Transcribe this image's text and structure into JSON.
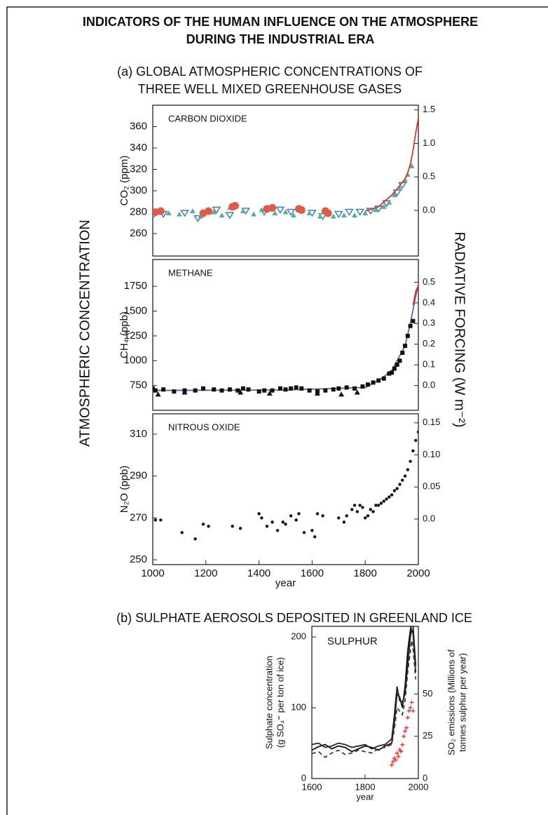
{
  "title": [
    "INDICATORS OF THE HUMAN INFLUENCE ON THE ATMOSPHERE",
    "DURING THE INDUSTRIAL ERA"
  ],
  "section_a": [
    "(a) GLOBAL ATMOSPHERIC CONCENTRATIONS OF",
    "THREE WELL MIXED GREENHOUSE GASES"
  ],
  "section_b": "(b)  SULPHATE AEROSOLS DEPOSITED IN GREENLAND ICE",
  "y_label_left": "ATMOSPHERIC CONCENTRATION",
  "y_label_right": "RADIATIVE FORCING (W m⁻²)",
  "chart_data": [
    {
      "type": "scatter",
      "panel_label": "CARBON DIOXIDE",
      "y_label": "CO₂ (ppm)",
      "xlim": [
        1000,
        2000
      ],
      "ylim": [
        239,
        380
      ],
      "yticks": [
        260,
        280,
        300,
        320,
        340,
        360
      ],
      "y2lim": [
        -0.68,
        1.57
      ],
      "y2ticks": [
        {
          "value": 0,
          "label": "0.0"
        },
        0.5,
        {
          "value": 1,
          "label": "1.0"
        },
        1.5
      ],
      "series": [
        {
          "color": "#3d7fb0",
          "marker": "triangle-down",
          "x": [
            1040,
            1120,
            1170,
            1240,
            1290,
            1350,
            1420,
            1480,
            1520,
            1600,
            1640,
            1700,
            1740,
            1780,
            1820,
            1850,
            1880,
            1920,
            1940
          ],
          "values": [
            278,
            279,
            274,
            282,
            277,
            281,
            280,
            282,
            280,
            279,
            276,
            278,
            280,
            280,
            281,
            283,
            288,
            298,
            305
          ]
        },
        {
          "color": "#5bab9a",
          "marker": "triangle",
          "x": [
            1000,
            1060,
            1100,
            1150,
            1180,
            1230,
            1260,
            1290,
            1340,
            1380,
            1410,
            1460,
            1500,
            1530,
            1590,
            1630,
            1680,
            1720,
            1760,
            1800,
            1840,
            1870,
            1890,
            1910,
            1930,
            1950,
            1960,
            1975
          ],
          "values": [
            277,
            279,
            278,
            281,
            276,
            280,
            277,
            284,
            281,
            278,
            282,
            279,
            280,
            277,
            279,
            276,
            276,
            277,
            277,
            279,
            282,
            285,
            289,
            296,
            302,
            310,
            315,
            323
          ]
        },
        {
          "color": "#e05a4a",
          "marker": "circle",
          "x": [
            1010,
            1030,
            1190,
            1210,
            1300,
            1310,
            1430,
            1450,
            1550,
            1560,
            1650,
            1660
          ],
          "values": [
            280,
            281,
            279,
            281,
            285,
            286,
            283,
            284,
            283,
            282,
            281,
            279
          ]
        },
        {
          "color": "#d8392b",
          "marker": "line",
          "x": [
            1800,
            1850,
            1900,
            1930,
            1950,
            1960,
            1970,
            1980,
            1990,
            2000
          ],
          "values": [
            281,
            285,
            296,
            305,
            311,
            317,
            325,
            338,
            354,
            368
          ]
        }
      ]
    },
    {
      "type": "scatter",
      "panel_label": "METHANE",
      "y_label": "CH₄ (ppb)",
      "xlim": [
        1000,
        2000
      ],
      "ylim": [
        500,
        2020
      ],
      "yticks": [
        750,
        1000,
        1250,
        1500,
        1750
      ],
      "y2lim": [
        -0.12,
        0.61
      ],
      "y2ticks": [
        {
          "value": 0,
          "label": "0.0"
        },
        0.1,
        0.2,
        0.3,
        0.4,
        0.5
      ],
      "series": [
        {
          "color": "#6b5ea8",
          "marker": "line",
          "x": [
            1000,
            1500,
            1800,
            1850,
            1900,
            1950,
            1970,
            1990,
            2000
          ],
          "values": [
            700,
            705,
            730,
            800,
            900,
            1150,
            1380,
            1650,
            1760
          ]
        },
        {
          "color": "#111111",
          "marker": "square",
          "x": [
            1000,
            1010,
            1040,
            1080,
            1120,
            1160,
            1190,
            1230,
            1260,
            1290,
            1320,
            1340,
            1360,
            1400,
            1420,
            1450,
            1480,
            1500,
            1520,
            1540,
            1560,
            1590,
            1620,
            1650,
            1680,
            1700,
            1730,
            1760,
            1790,
            1810,
            1830,
            1850,
            1870,
            1890,
            1900,
            1910,
            1920,
            1930,
            1940,
            1950,
            1960,
            1970,
            1980
          ],
          "values": [
            720,
            700,
            710,
            690,
            700,
            700,
            720,
            710,
            700,
            710,
            700,
            720,
            710,
            690,
            700,
            700,
            720,
            710,
            720,
            730,
            720,
            700,
            690,
            700,
            710,
            720,
            730,
            720,
            740,
            760,
            780,
            800,
            820,
            870,
            880,
            920,
            960,
            1000,
            1080,
            1150,
            1250,
            1350,
            1400
          ]
        },
        {
          "color": "#111111",
          "marker": "triangle",
          "x": [
            1020,
            1120,
            1330,
            1440,
            1620,
            1710,
            1770
          ],
          "values": [
            660,
            680,
            680,
            670,
            670,
            660,
            680
          ]
        },
        {
          "color": "#d8392b",
          "marker": "line",
          "x": [
            1980,
            1990,
            2000
          ],
          "values": [
            1560,
            1700,
            1760
          ]
        }
      ]
    },
    {
      "type": "scatter",
      "panel_label": "NITROUS OXIDE",
      "y_label": "N₂O (ppb)",
      "x_label": "year",
      "xlim": [
        1000,
        2000
      ],
      "xticks": [
        1000,
        1200,
        1400,
        1600,
        1800,
        2000
      ],
      "ylim": [
        247.7,
        319.7
      ],
      "yticks": [
        250,
        270,
        290,
        310
      ],
      "y2lim": [
        -0.071,
        0.164
      ],
      "y2ticks": [
        {
          "value": 0,
          "label": "0.0"
        },
        0.05,
        {
          "value": 0.1,
          "label": "0.10"
        },
        0.15
      ],
      "series": [
        {
          "color": "#111111",
          "marker": "dot",
          "x": [
            1010,
            1030,
            1110,
            1160,
            1190,
            1210,
            1300,
            1330,
            1400,
            1410,
            1430,
            1450,
            1470,
            1490,
            1500,
            1520,
            1540,
            1550,
            1570,
            1600,
            1610,
            1620,
            1640,
            1700,
            1720,
            1730,
            1750,
            1760,
            1770,
            1780,
            1790,
            1800,
            1810,
            1820,
            1830,
            1840,
            1850,
            1860,
            1870,
            1880,
            1890,
            1900,
            1910,
            1920,
            1930,
            1940,
            1950,
            1960,
            1970,
            1980,
            1990,
            2000
          ],
          "values": [
            269,
            269,
            263,
            260,
            267,
            266,
            266,
            265,
            272,
            270,
            266,
            268,
            264,
            268,
            267,
            271,
            269,
            272,
            263,
            264,
            261,
            272,
            271,
            270,
            268,
            271,
            274,
            276,
            273,
            276,
            275,
            270,
            271,
            274,
            273,
            276,
            276,
            277,
            278,
            279,
            280,
            281,
            283,
            284,
            286,
            288,
            290,
            293,
            297,
            302,
            307,
            311
          ]
        }
      ]
    },
    {
      "type": "scatter",
      "panel_label": "SULPHUR",
      "y_label": [
        "Sulphate concentration",
        "(g SO₄⁼ per ton of ice)"
      ],
      "y2_label": [
        "SO₂ emissions (Millions of",
        "tonnes sulphur per year)"
      ],
      "x_label": "year",
      "xlim": [
        1600,
        2000
      ],
      "xticks": [
        1600,
        1800,
        2000
      ],
      "ylim": [
        0,
        215
      ],
      "yticks": [
        0,
        100,
        200
      ],
      "y2lim": [
        0,
        90
      ],
      "y2ticks": [
        0,
        25,
        50
      ],
      "series": [
        {
          "color": "#111111",
          "marker": "line",
          "x": [
            1600,
            1625,
            1650,
            1675,
            1700,
            1725,
            1750,
            1775,
            1800,
            1825,
            1850,
            1875,
            1900,
            1910,
            1920,
            1930,
            1940,
            1950,
            1960,
            1970,
            1975,
            1980,
            1990
          ],
          "values": [
            40,
            45,
            48,
            42,
            46,
            44,
            38,
            42,
            46,
            44,
            40,
            46,
            50,
            80,
            120,
            115,
            100,
            130,
            180,
            210,
            220,
            215,
            160
          ]
        },
        {
          "color": "#444444",
          "marker": "dash",
          "x": [
            1600,
            1625,
            1650,
            1675,
            1700,
            1725,
            1750,
            1775,
            1800,
            1825,
            1850,
            1875,
            1900,
            1910,
            1920,
            1930,
            1940,
            1950,
            1960,
            1970,
            1975,
            1980,
            1990
          ],
          "values": [
            35,
            38,
            30,
            36,
            40,
            34,
            36,
            40,
            38,
            36,
            42,
            44,
            48,
            70,
            100,
            95,
            90,
            110,
            150,
            180,
            195,
            185,
            140
          ]
        },
        {
          "color": "#222222",
          "marker": "line",
          "x": [
            1600,
            1625,
            1650,
            1675,
            1700,
            1725,
            1750,
            1775,
            1800,
            1825,
            1850,
            1875,
            1900,
            1910,
            1920,
            1930,
            1940,
            1950,
            1960,
            1970,
            1975,
            1980,
            1990
          ],
          "values": [
            48,
            50,
            44,
            46,
            50,
            48,
            44,
            46,
            48,
            42,
            46,
            48,
            56,
            90,
            130,
            110,
            108,
            120,
            160,
            200,
            210,
            205,
            150
          ]
        },
        {
          "color": "#e0302a",
          "marker": "cross",
          "axis": "y2",
          "x": [
            1900,
            1905,
            1910,
            1915,
            1920,
            1925,
            1930,
            1935,
            1940,
            1945,
            1950,
            1955,
            1960,
            1965,
            1970,
            1975,
            1980
          ],
          "values": [
            8,
            10,
            12,
            11,
            15,
            13,
            17,
            16,
            20,
            25,
            28,
            30,
            36,
            40,
            42,
            45,
            40
          ]
        }
      ]
    }
  ]
}
